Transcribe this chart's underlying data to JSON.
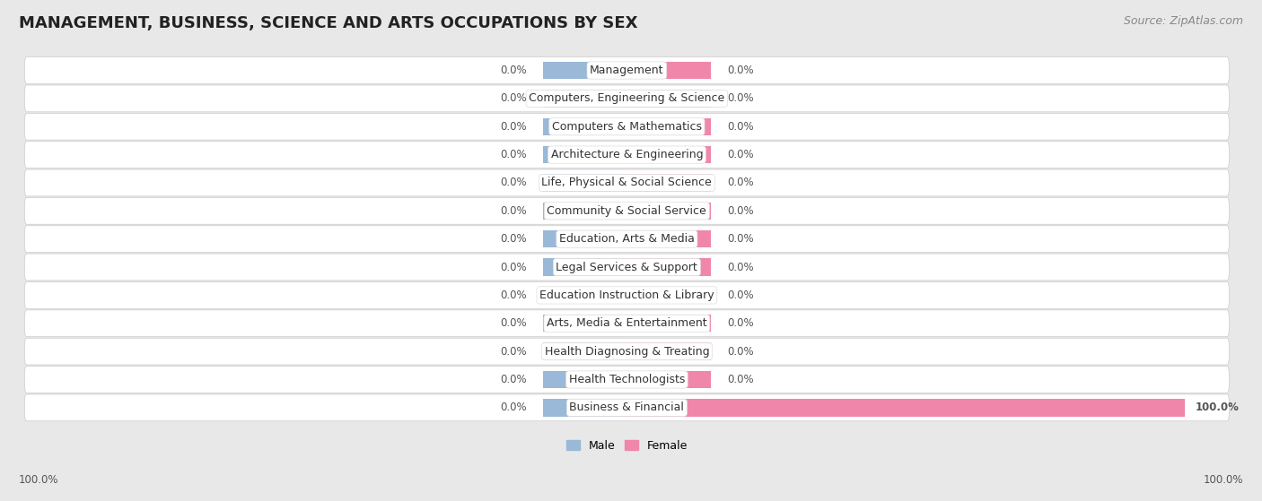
{
  "title": "MANAGEMENT, BUSINESS, SCIENCE AND ARTS OCCUPATIONS BY SEX",
  "source": "Source: ZipAtlas.com",
  "categories": [
    "Management",
    "Computers, Engineering & Science",
    "Computers & Mathematics",
    "Architecture & Engineering",
    "Life, Physical & Social Science",
    "Community & Social Service",
    "Education, Arts & Media",
    "Legal Services & Support",
    "Education Instruction & Library",
    "Arts, Media & Entertainment",
    "Health Diagnosing & Treating",
    "Health Technologists",
    "Business & Financial"
  ],
  "male_values": [
    0.0,
    0.0,
    0.0,
    0.0,
    0.0,
    0.0,
    0.0,
    0.0,
    0.0,
    0.0,
    0.0,
    0.0,
    0.0
  ],
  "female_values": [
    0.0,
    0.0,
    0.0,
    0.0,
    0.0,
    0.0,
    0.0,
    0.0,
    0.0,
    0.0,
    0.0,
    0.0,
    100.0
  ],
  "male_color": "#9ab8d8",
  "female_color": "#f087aa",
  "male_label": "Male",
  "female_label": "Female",
  "bg_color": "#e8e8e8",
  "row_color": "#ffffff",
  "bar_height": 0.62,
  "stub_size": 15.0,
  "xlim_left": -110,
  "xlim_right": 110,
  "title_fontsize": 13,
  "source_fontsize": 9,
  "category_fontsize": 9,
  "value_fontsize": 8.5,
  "legend_fontsize": 9
}
